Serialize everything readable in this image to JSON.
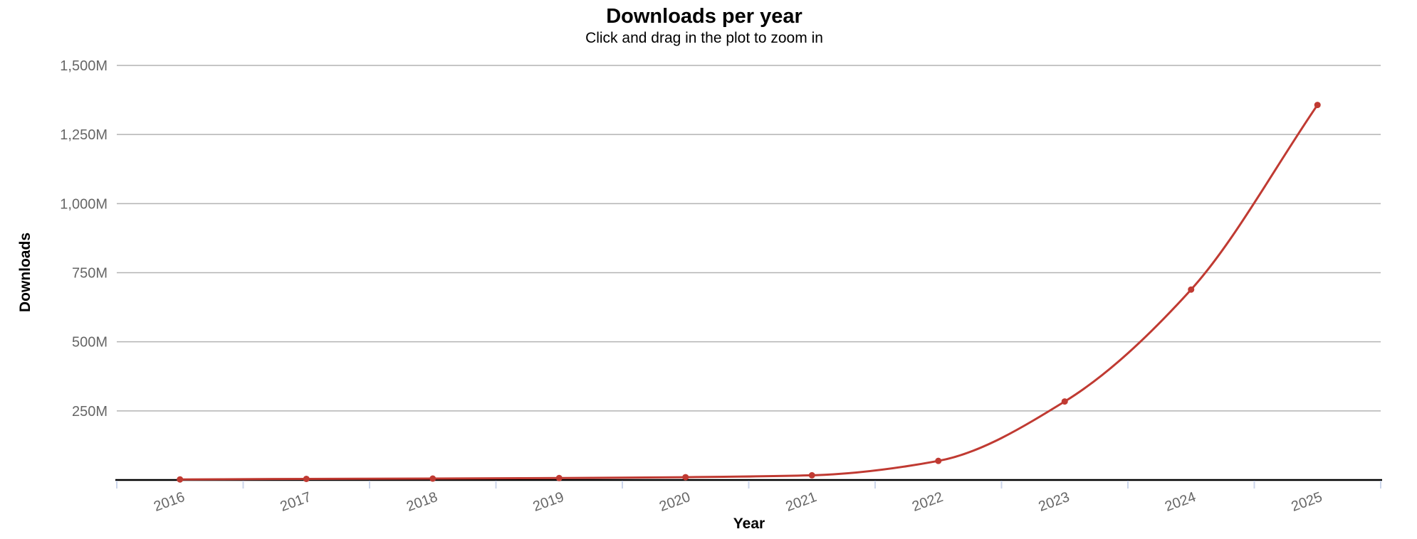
{
  "chart_data": {
    "type": "line",
    "title": "Downloads per year",
    "subtitle": "Click and drag in the plot to zoom in",
    "xlabel": "Year",
    "ylabel": "Downloads",
    "unit": "M",
    "categories": [
      "2016",
      "2017",
      "2018",
      "2019",
      "2020",
      "2021",
      "2022",
      "2023",
      "2024",
      "2025"
    ],
    "series": [
      {
        "name": "Downloads",
        "values": [
          2,
          4,
          5,
          7,
          10,
          17,
          69,
          284,
          689,
          1357
        ]
      }
    ],
    "ylim": [
      0,
      1500
    ],
    "y_ticks": [
      {
        "value": 250,
        "label": "250M"
      },
      {
        "value": 500,
        "label": "500M"
      },
      {
        "value": 750,
        "label": "750M"
      },
      {
        "value": 1000,
        "label": "1,000M"
      },
      {
        "value": 1250,
        "label": "1,250M"
      },
      {
        "value": 1500,
        "label": "1,500M"
      }
    ],
    "grid": true,
    "legend": false,
    "marker": "circle",
    "x_label_rotation": -20,
    "colors": {
      "series": "#c03a32",
      "grid": "#b3b3b3",
      "axis_line": "#000000",
      "tick": "#ccd6eb",
      "axis_label": "#666666",
      "title": "#000000",
      "background": "#ffffff"
    }
  }
}
